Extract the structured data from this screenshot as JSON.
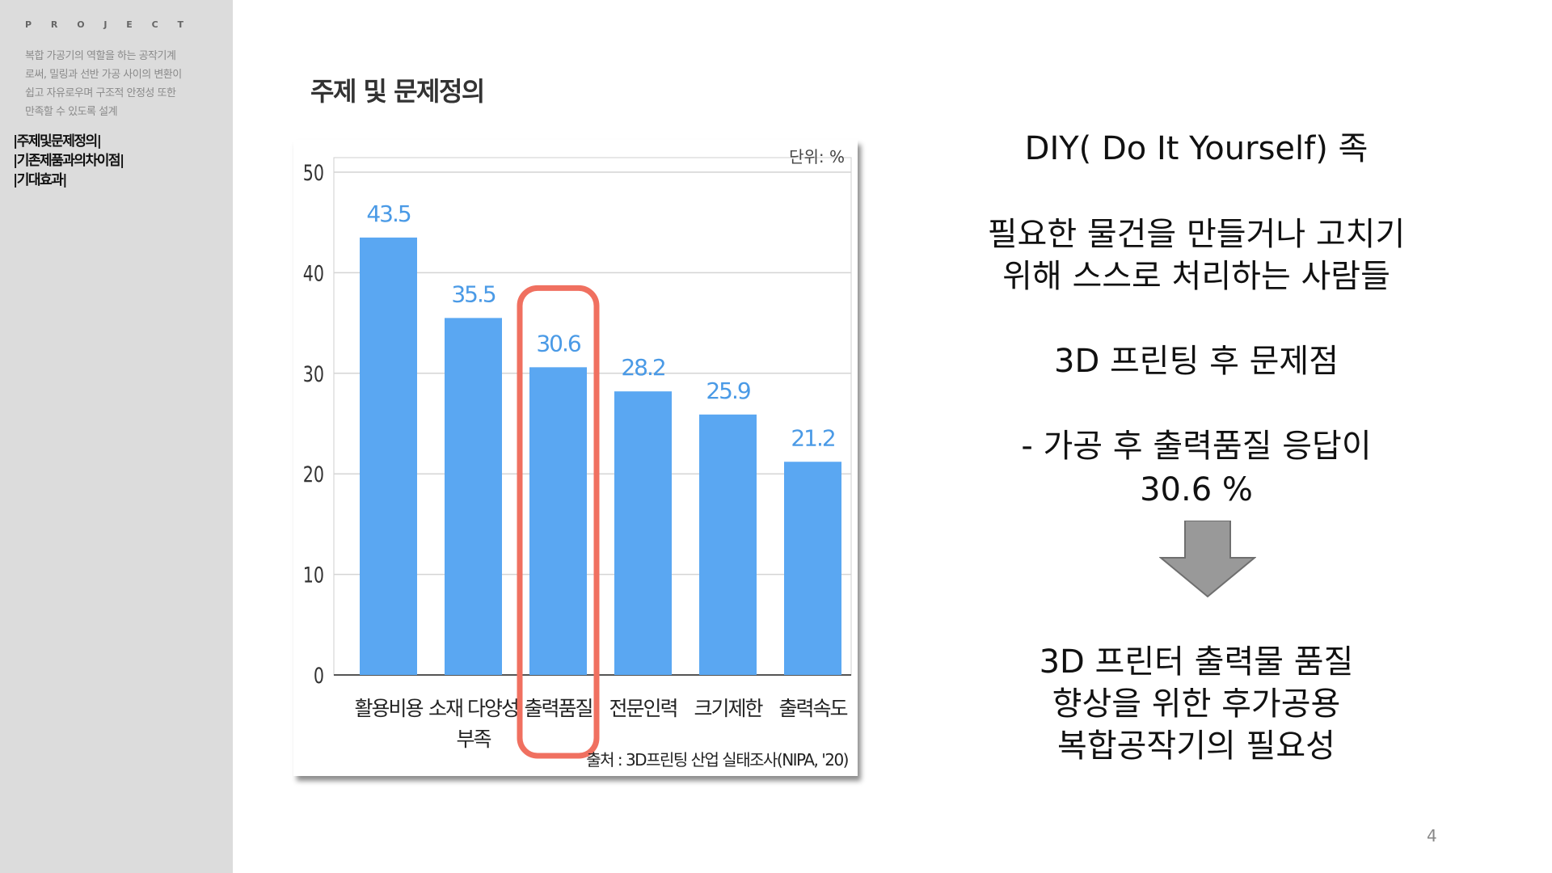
{
  "sidebar": {
    "label": "P R O J E C T",
    "description": [
      "복합 가공기의 역할을 하는 공작기계",
      "로써, 밀링과 선반 가공 사이의 변환이",
      "쉽고 자유로우며 구조적 안정성 또한",
      "만족할 수 있도록 설계"
    ],
    "nav": [
      "|주제및문제정의|",
      "|기존제품과의차이점|",
      "|기대효과|"
    ]
  },
  "slide": {
    "title": "주제 및 문제정의",
    "page_number": "4"
  },
  "chart_data": {
    "type": "bar",
    "unit_label": "단위: %",
    "categories": [
      "활용비용",
      "소재 다양성 부족",
      "출력품질",
      "전문인력",
      "크기제한",
      "출력속도"
    ],
    "category_lines": [
      [
        "활용비용"
      ],
      [
        "소재 다양성",
        "부족"
      ],
      [
        "출력품질"
      ],
      [
        "전문인력"
      ],
      [
        "크기제한"
      ],
      [
        "출력속도"
      ]
    ],
    "values": [
      43.5,
      35.5,
      30.6,
      28.2,
      25.9,
      21.2
    ],
    "value_labels": [
      "43.5",
      "35.5",
      "30.6",
      "28.2",
      "25.9",
      "21.2"
    ],
    "ylim": [
      0,
      50
    ],
    "yticks": [
      "0",
      "10",
      "20",
      "30",
      "40",
      "50"
    ],
    "source": "출처 : 3D프린팅 산업 실태조사(NIPA, '20)",
    "highlight_index": 2,
    "bar_color": "#5aa7f2",
    "label_color": "#4a9ae6",
    "highlight_color": "#f07060",
    "grid": true
  },
  "right": {
    "line1": "DIY( Do It Yourself) 족",
    "line2a": "필요한 물건을 만들거나 고치기",
    "line2b": "위해 스스로 처리하는 사람들",
    "line3": "3D 프린팅 후 문제점",
    "line4a": "- 가공 후  출력품질 응답이",
    "line4b": "30.6 %",
    "arrow_icon": "down-arrow",
    "line5a": "3D 프린터 출력물 품질",
    "line5b": "향상을 위한 후가공용",
    "line5c": "복합공작기의 필요성"
  }
}
